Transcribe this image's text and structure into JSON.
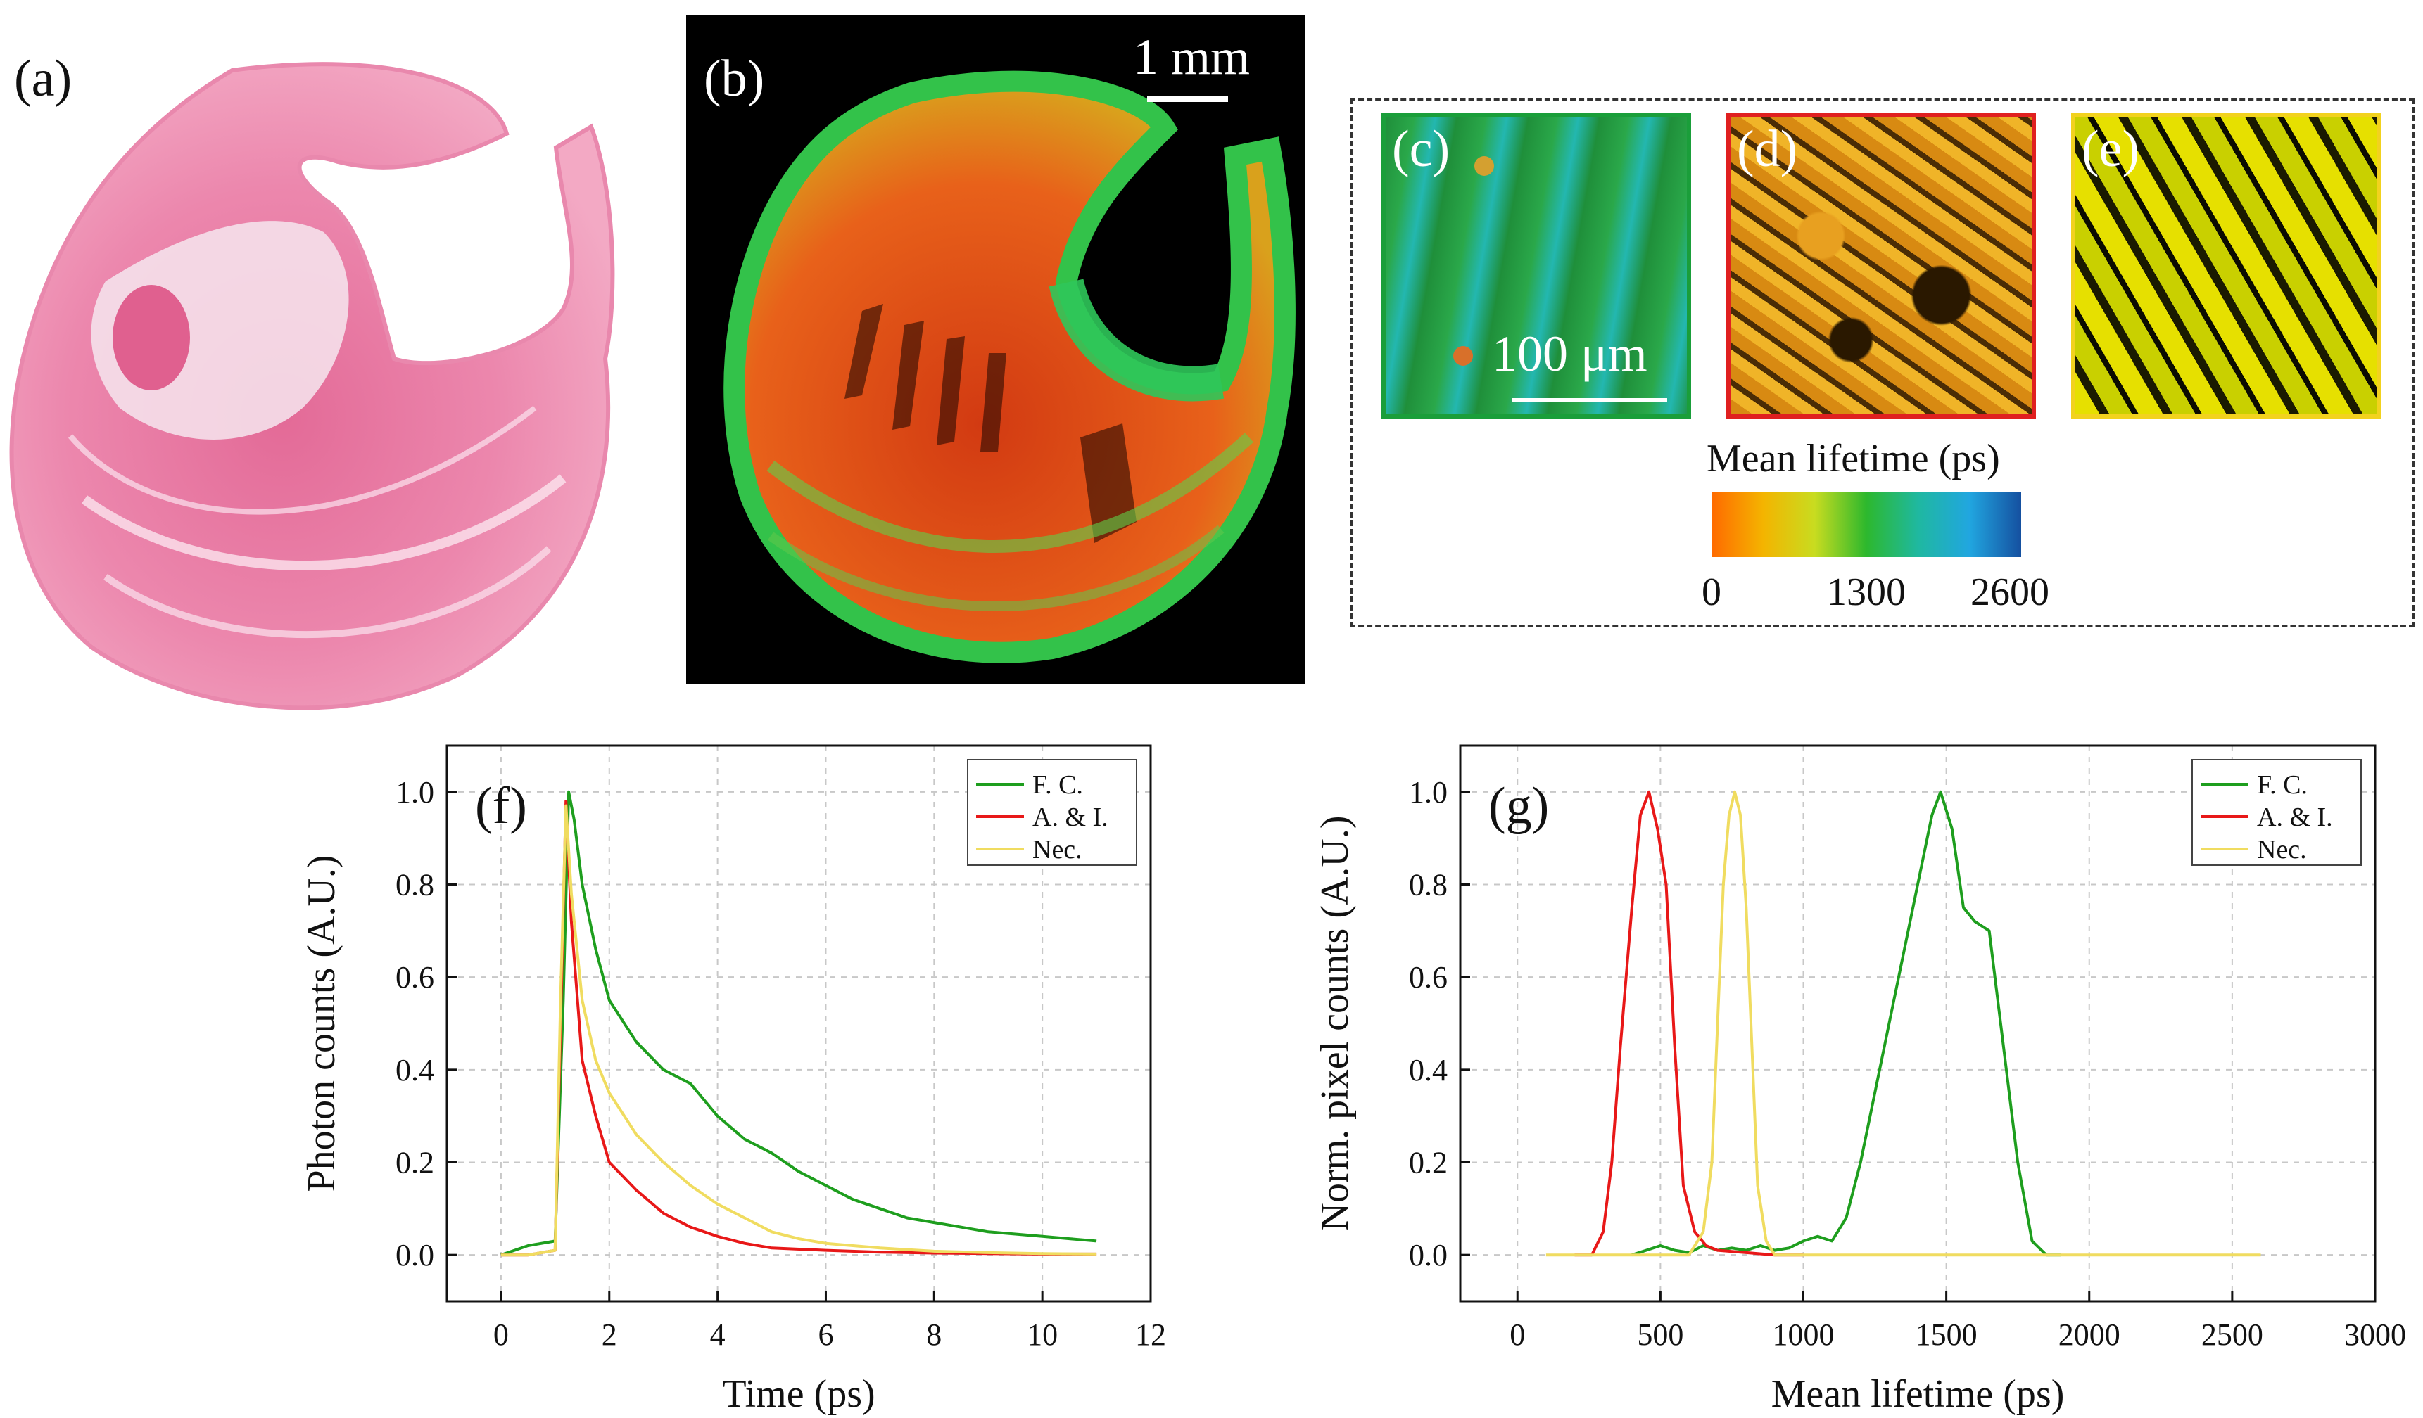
{
  "figure": {
    "panel_labels": {
      "a": "(a)",
      "b": "(b)",
      "c": "(c)",
      "d": "(d)",
      "e": "(e)",
      "f": "(f)",
      "g": "(g)"
    },
    "scalebar_b": "1 mm",
    "scalebar_c": "100 μm",
    "colorbar": {
      "title": "Mean lifetime (ps)",
      "tick_labels": [
        "0",
        "1300",
        "2600"
      ],
      "colors": [
        "#ff6a00",
        "#f4b400",
        "#c8dc20",
        "#2db82d",
        "#1fb8a0",
        "#21a6e0",
        "#1550a0"
      ]
    },
    "tile_borders": {
      "c": "#1a9e3a",
      "d": "#e02020",
      "e": "#f2d21e"
    }
  },
  "chart_data": [
    {
      "type": "line",
      "panel": "(f)",
      "xlabel": "Time (ps)",
      "ylabel": "Photon counts (A.U.)",
      "xlim": [
        -1,
        12
      ],
      "ylim": [
        -0.1,
        1.1
      ],
      "xticks": [
        0,
        2,
        4,
        6,
        8,
        10,
        12
      ],
      "yticks": [
        0.0,
        0.2,
        0.4,
        0.6,
        0.8,
        1.0
      ],
      "xtick_labels": [
        "0",
        "2",
        "4",
        "6",
        "8",
        "10",
        "12"
      ],
      "ytick_labels": [
        "0.0",
        "0.2",
        "0.4",
        "0.6",
        "0.8",
        "1.0"
      ],
      "grid": true,
      "legend_position": "top-right",
      "series": [
        {
          "name": "F. C.",
          "color": "#1e9e1e",
          "x": [
            0,
            0.5,
            1.0,
            1.15,
            1.25,
            1.35,
            1.5,
            1.75,
            2.0,
            2.5,
            3.0,
            3.5,
            4.0,
            4.5,
            5.0,
            5.5,
            6.0,
            6.5,
            7.0,
            7.5,
            8.0,
            8.5,
            9.0,
            9.5,
            10.0,
            10.5,
            11.0
          ],
          "y": [
            0.0,
            0.02,
            0.03,
            0.55,
            1.0,
            0.94,
            0.8,
            0.66,
            0.55,
            0.46,
            0.4,
            0.37,
            0.3,
            0.25,
            0.22,
            0.18,
            0.15,
            0.12,
            0.1,
            0.08,
            0.07,
            0.06,
            0.05,
            0.045,
            0.04,
            0.035,
            0.03
          ]
        },
        {
          "name": "A. & I.",
          "color": "#e81818",
          "x": [
            0,
            0.5,
            1.0,
            1.1,
            1.2,
            1.3,
            1.5,
            1.75,
            2.0,
            2.5,
            3.0,
            3.5,
            4.0,
            4.5,
            5.0,
            6.0,
            7.0,
            8.0,
            9.0,
            10.0,
            11.0
          ],
          "y": [
            0.0,
            0.0,
            0.01,
            0.5,
            0.98,
            0.72,
            0.42,
            0.3,
            0.2,
            0.14,
            0.09,
            0.06,
            0.04,
            0.025,
            0.015,
            0.01,
            0.006,
            0.004,
            0.003,
            0.002,
            0.002
          ]
        },
        {
          "name": "Nec.",
          "color": "#f0dc60",
          "x": [
            0,
            0.5,
            1.0,
            1.1,
            1.2,
            1.3,
            1.5,
            1.75,
            2.0,
            2.5,
            3.0,
            3.5,
            4.0,
            4.5,
            5.0,
            5.5,
            6.0,
            7.0,
            8.0,
            9.0,
            10.0,
            11.0
          ],
          "y": [
            0.0,
            0.0,
            0.01,
            0.55,
            0.97,
            0.78,
            0.55,
            0.42,
            0.35,
            0.26,
            0.2,
            0.15,
            0.11,
            0.08,
            0.05,
            0.035,
            0.025,
            0.015,
            0.008,
            0.005,
            0.003,
            0.002
          ]
        }
      ]
    },
    {
      "type": "line",
      "panel": "(g)",
      "xlabel": "Mean lifetime (ps)",
      "ylabel": "Norm. pixel counts (A.U.)",
      "xlim": [
        -200,
        3000
      ],
      "ylim": [
        -0.1,
        1.1
      ],
      "xticks": [
        0,
        500,
        1000,
        1500,
        2000,
        2500,
        3000
      ],
      "yticks": [
        0.0,
        0.2,
        0.4,
        0.6,
        0.8,
        1.0
      ],
      "xtick_labels": [
        "0",
        "500",
        "1000",
        "1500",
        "2000",
        "2500",
        "3000"
      ],
      "ytick_labels": [
        "0.0",
        "0.2",
        "0.4",
        "0.6",
        "0.8",
        "1.0"
      ],
      "grid": true,
      "legend_position": "top-right",
      "series": [
        {
          "name": "F. C.",
          "color": "#1e9e1e",
          "x": [
            400,
            450,
            500,
            550,
            600,
            650,
            700,
            750,
            800,
            850,
            900,
            950,
            1000,
            1050,
            1100,
            1150,
            1200,
            1250,
            1300,
            1350,
            1400,
            1450,
            1480,
            1520,
            1560,
            1600,
            1650,
            1700,
            1750,
            1800,
            1850,
            1900
          ],
          "y": [
            0.0,
            0.01,
            0.02,
            0.01,
            0.005,
            0.02,
            0.01,
            0.015,
            0.01,
            0.02,
            0.01,
            0.015,
            0.03,
            0.04,
            0.03,
            0.08,
            0.2,
            0.35,
            0.5,
            0.65,
            0.8,
            0.95,
            1.0,
            0.92,
            0.75,
            0.72,
            0.7,
            0.45,
            0.2,
            0.03,
            0.0,
            0.0
          ]
        },
        {
          "name": "A. & I.",
          "color": "#e81818",
          "x": [
            200,
            260,
            300,
            330,
            360,
            400,
            430,
            460,
            490,
            520,
            550,
            580,
            620,
            660,
            700,
            800,
            900,
            1000
          ],
          "y": [
            0.0,
            0.0,
            0.05,
            0.2,
            0.45,
            0.75,
            0.95,
            1.0,
            0.92,
            0.8,
            0.45,
            0.15,
            0.05,
            0.02,
            0.01,
            0.005,
            0.0,
            0.0
          ]
        },
        {
          "name": "Nec.",
          "color": "#f0dc60",
          "x": [
            100,
            400,
            600,
            650,
            680,
            700,
            720,
            740,
            760,
            780,
            800,
            820,
            840,
            870,
            900,
            1000,
            1500,
            2000,
            2600
          ],
          "y": [
            0.0,
            0.0,
            0.0,
            0.05,
            0.2,
            0.5,
            0.8,
            0.95,
            1.0,
            0.95,
            0.75,
            0.45,
            0.15,
            0.03,
            0.0,
            0.0,
            0.0,
            0.0,
            0.0
          ]
        }
      ]
    }
  ]
}
